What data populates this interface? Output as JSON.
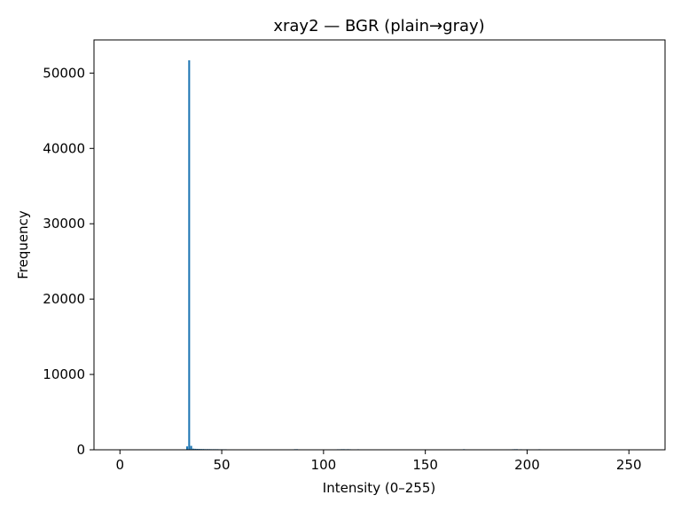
{
  "chart_data": {
    "type": "bar",
    "title": "xray2 — BGR (plain→gray)",
    "xlabel": "Intensity (0–255)",
    "ylabel": "Frequency",
    "xlim": [
      -12.75,
      267.75
    ],
    "ylim": [
      0,
      54400
    ],
    "x_ticks": [
      0,
      50,
      100,
      150,
      200,
      250
    ],
    "y_ticks": [
      0,
      10000,
      20000,
      30000,
      40000,
      50000
    ],
    "x_tick_labels": [
      "0",
      "50",
      "100",
      "150",
      "200",
      "250"
    ],
    "y_tick_labels": [
      "0",
      "10000",
      "20000",
      "30000",
      "40000",
      "50000"
    ],
    "grid": false,
    "bar_color": "#1f77b4",
    "x": [
      33,
      34,
      35,
      36,
      37,
      38,
      39,
      40,
      41,
      42,
      43,
      44,
      45,
      46,
      47,
      48,
      49,
      50,
      51,
      52,
      53,
      54,
      55,
      56,
      57,
      58,
      59,
      60,
      61,
      62,
      84,
      85,
      86,
      87,
      88,
      89,
      98,
      102,
      103,
      104,
      105,
      106,
      107,
      108,
      109,
      110,
      111,
      112,
      113,
      114,
      115,
      116,
      117,
      118,
      119,
      120,
      121,
      122,
      123,
      124,
      150,
      160,
      161,
      162,
      163,
      164,
      165,
      166,
      167,
      168,
      169,
      170,
      171,
      172,
      173,
      174,
      188,
      189,
      190,
      191,
      192,
      193,
      194,
      195,
      196,
      197,
      198,
      199,
      200,
      201,
      202,
      203,
      204,
      205,
      206,
      207,
      208,
      209
    ],
    "values": [
      450,
      51700,
      520,
      150,
      130,
      120,
      110,
      100,
      100,
      90,
      90,
      90,
      80,
      80,
      80,
      80,
      70,
      70,
      70,
      70,
      60,
      60,
      60,
      60,
      50,
      50,
      40,
      40,
      30,
      20,
      30,
      60,
      80,
      80,
      60,
      30,
      20,
      20,
      30,
      40,
      50,
      60,
      70,
      70,
      80,
      80,
      70,
      80,
      70,
      60,
      60,
      60,
      70,
      50,
      40,
      40,
      40,
      30,
      30,
      20,
      20,
      20,
      30,
      40,
      50,
      60,
      60,
      50,
      40,
      50,
      80,
      60,
      40,
      40,
      30,
      20,
      20,
      40,
      60,
      60,
      60,
      70,
      80,
      80,
      60,
      70,
      60,
      60,
      70,
      60,
      50,
      40,
      40,
      60,
      70,
      60,
      50,
      40
    ]
  }
}
